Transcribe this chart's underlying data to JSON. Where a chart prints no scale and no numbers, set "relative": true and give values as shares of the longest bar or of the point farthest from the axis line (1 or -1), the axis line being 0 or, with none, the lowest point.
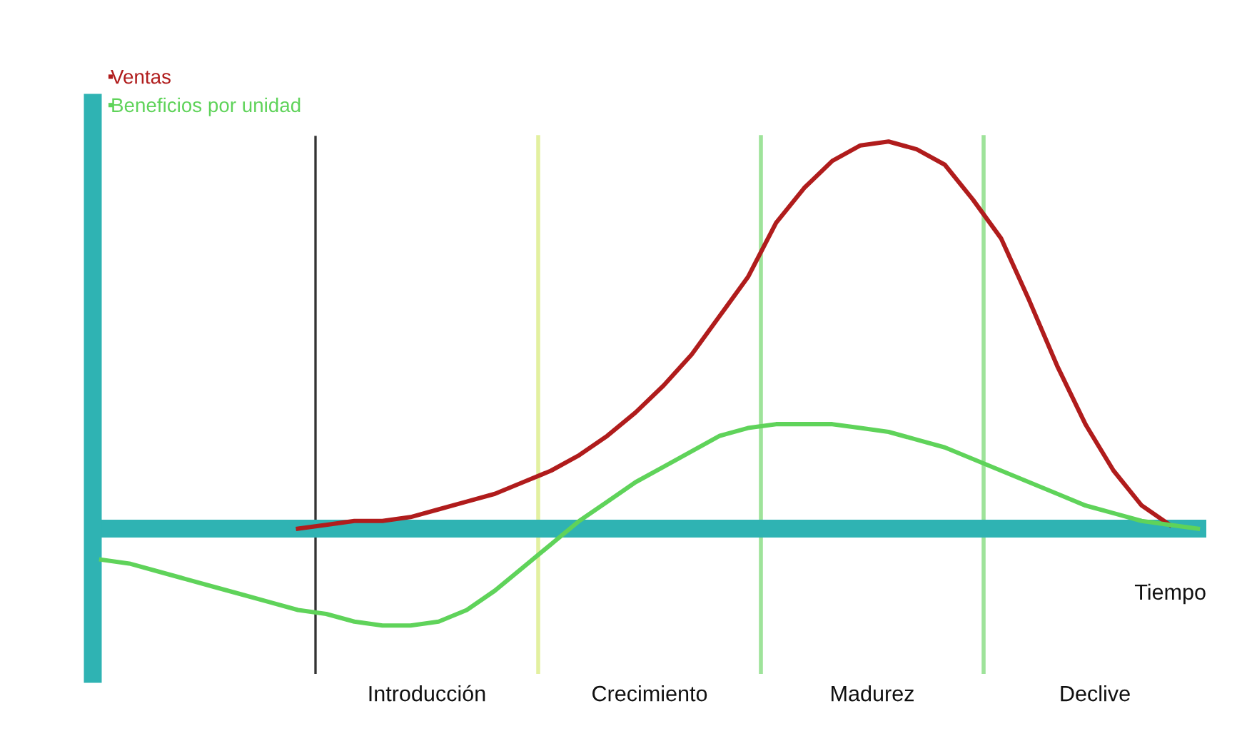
{
  "chart_data": {
    "type": "line",
    "relative": true,
    "xlabel": "Tiempo",
    "categories": [
      null,
      null,
      null,
      null,
      null,
      null,
      null,
      null,
      null,
      null,
      null,
      null,
      null,
      null,
      null,
      null,
      null,
      null,
      null,
      null,
      null,
      null,
      null,
      null,
      null,
      null,
      null,
      null,
      null,
      null,
      null,
      null,
      null,
      null,
      null,
      null,
      null,
      null,
      null,
      null
    ],
    "series": [
      {
        "name": "Ventas",
        "color": "#b01c1c",
        "values": [
          null,
          null,
          null,
          null,
          null,
          null,
          null,
          0.0,
          0.01,
          0.02,
          0.02,
          0.03,
          0.05,
          0.07,
          0.09,
          0.12,
          0.15,
          0.19,
          0.24,
          0.3,
          0.37,
          0.45,
          0.55,
          0.65,
          0.79,
          0.88,
          0.95,
          0.99,
          1.0,
          0.98,
          0.94,
          0.85,
          0.75,
          0.59,
          0.42,
          0.27,
          0.15,
          0.06,
          0.01,
          null
        ]
      },
      {
        "name": "Beneficios por unidad",
        "color": "#5fd35a",
        "values": [
          -0.08,
          -0.09,
          -0.11,
          -0.13,
          -0.15,
          -0.17,
          -0.19,
          -0.21,
          -0.22,
          -0.24,
          -0.25,
          -0.25,
          -0.24,
          -0.21,
          -0.16,
          -0.1,
          -0.04,
          0.02,
          0.07,
          0.12,
          0.16,
          0.2,
          0.24,
          0.26,
          0.27,
          0.27,
          0.27,
          0.26,
          0.25,
          0.23,
          0.21,
          0.18,
          0.15,
          0.12,
          0.09,
          0.06,
          0.04,
          0.02,
          0.01,
          0.0
        ]
      }
    ],
    "ref_lines": [
      {
        "axis": "y",
        "value": 0,
        "color": "#2fb3b3"
      }
    ],
    "annotations": [
      "Introducción",
      "Crecimiento",
      "Madurez",
      "Declive"
    ],
    "legend": "top left",
    "marker": "none",
    "line_style": "solid"
  }
}
